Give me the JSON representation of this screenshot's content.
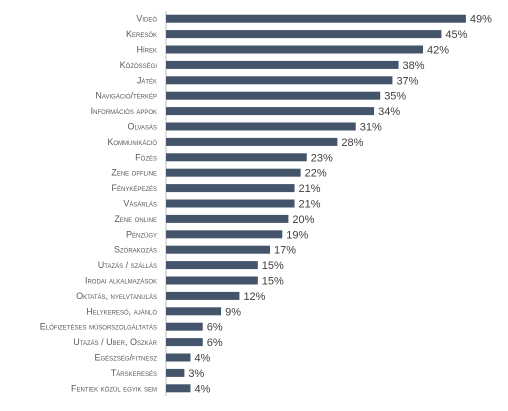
{
  "chart_data": {
    "type": "bar",
    "orientation": "horizontal",
    "title": "",
    "xlabel": "",
    "ylabel": "",
    "xlim": [
      0,
      50
    ],
    "grid": false,
    "legend": "none",
    "bar_color": "#44546A",
    "value_format": "{v}%",
    "categories": [
      "Videó",
      "Keresők",
      "Hírek",
      "Közösségi",
      "Játék",
      "Navigáció/térkép",
      "Információs appok",
      "Olvasás",
      "Kommunikáció",
      "Főzés",
      "Zene offline",
      "Fényképezés",
      "Vásárlás",
      "Zene online",
      "Pénzügy",
      "Szórakozás",
      "Utazás / szállás",
      "Irodai alkalmazások",
      "Oktatás, nyelvtanulás",
      "Helykereső, ajánló",
      "Előfizetéses műsorszolgáltatás",
      "Utazás / Uber, Oszkár",
      "Egészség/fitnesz",
      "Társkeresés",
      "Fentiek közül egyik sem"
    ],
    "values": [
      49,
      45,
      42,
      38,
      37,
      35,
      34,
      31,
      28,
      23,
      22,
      21,
      21,
      20,
      19,
      17,
      15,
      15,
      12,
      9,
      6,
      6,
      4,
      3,
      4
    ],
    "value_labels": [
      "49%",
      "45%",
      "42%",
      "38%",
      "37%",
      "35%",
      "34%",
      "31%",
      "28%",
      "23%",
      "22%",
      "21%",
      "21%",
      "20%",
      "19%",
      "17%",
      "15%",
      "15%",
      "12%",
      "9%",
      "6%",
      "6%",
      "4%",
      "3%",
      "4%"
    ]
  }
}
